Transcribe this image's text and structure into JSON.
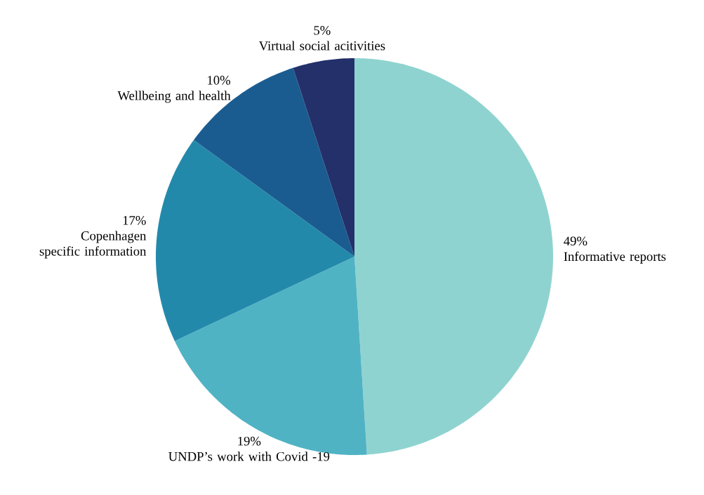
{
  "chart_data": {
    "type": "pie",
    "categories": [
      "Informative reports",
      "UNDP’s work with Covid -19",
      "Copenhagen specific information",
      "Wellbeing and health",
      "Virtual social acitivities"
    ],
    "values": [
      49,
      19,
      17,
      10,
      5
    ],
    "value_labels": [
      "49%",
      "19%",
      "17%",
      "10%",
      "5%"
    ],
    "colors": [
      "#8fd3d0",
      "#4fb3c4",
      "#2389ab",
      "#1a5c90",
      "#24306a"
    ]
  }
}
